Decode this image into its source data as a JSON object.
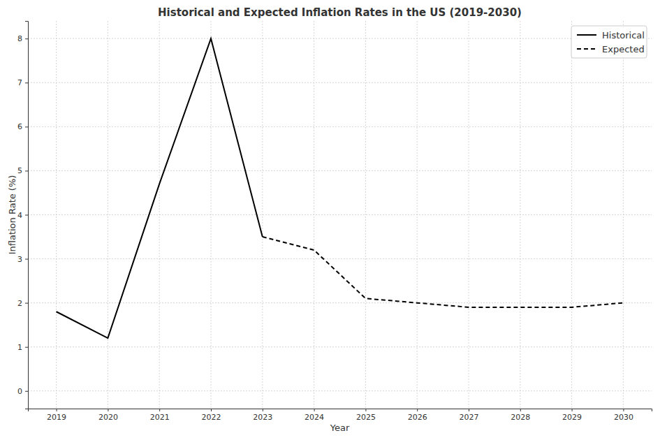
{
  "chart_data": {
    "type": "line",
    "title": "Historical and Expected Inflation Rates in the US (2019-2030)",
    "x_label": "Year",
    "y_label": "Inflation Rate (%)",
    "x": [
      2019,
      2020,
      2021,
      2022,
      2023,
      2024,
      2025,
      2026,
      2027,
      2028,
      2029,
      2030
    ],
    "series": [
      {
        "name": "Historical",
        "color": "#000000",
        "line_style": "solid",
        "values": [
          1.8,
          1.2,
          4.7,
          8.0,
          3.5,
          null,
          null,
          null,
          null,
          null,
          null,
          null
        ]
      },
      {
        "name": "Expected",
        "color": "#000000",
        "line_style": "dashed",
        "values": [
          null,
          null,
          null,
          null,
          3.5,
          3.2,
          2.1,
          2.0,
          1.9,
          1.9,
          1.9,
          2.0
        ]
      }
    ],
    "xlim": [
      2018.45,
      2030.55
    ],
    "xticks": [
      2019,
      2020,
      2021,
      2022,
      2023,
      2024,
      2025,
      2026,
      2027,
      2028,
      2029,
      2030
    ],
    "ylim": [
      -0.4,
      8.4
    ],
    "yticks": [
      0,
      1,
      2,
      3,
      4,
      5,
      6,
      7,
      8
    ],
    "grid": true,
    "legend": "upper right"
  }
}
